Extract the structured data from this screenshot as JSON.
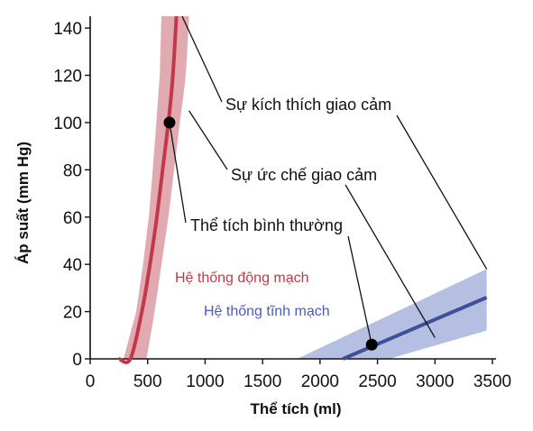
{
  "chart_data": {
    "type": "line",
    "xlabel": "Thể tích (ml)",
    "ylabel": "Áp suất (mm Hg)",
    "xlim": [
      0,
      3500
    ],
    "ylim": [
      0,
      145
    ],
    "x_ticks": [
      0,
      500,
      1000,
      1500,
      2000,
      2500,
      3000,
      3500
    ],
    "y_ticks": [
      0,
      20,
      40,
      60,
      80,
      100,
      120,
      140
    ],
    "grid": false,
    "series": [
      {
        "name": "Hệ thống động mạch",
        "color": "#c0394b",
        "band_color": "#dc9aa2",
        "x": [
          250,
          350,
          450,
          520,
          580,
          630,
          680,
          720,
          750
        ],
        "y": [
          0,
          0,
          20,
          40,
          60,
          80,
          100,
          120,
          145
        ],
        "band_upper_x": [
          490,
          560,
          620,
          680,
          730,
          780,
          830,
          860
        ],
        "band_upper_y": [
          0,
          20,
          40,
          60,
          80,
          100,
          120,
          145
        ],
        "band_lower_x": [
          290,
          400,
          460,
          510,
          545,
          575,
          605,
          620
        ],
        "band_lower_y": [
          0,
          20,
          40,
          60,
          80,
          100,
          120,
          145
        ]
      },
      {
        "name": "Hệ thống tĩnh mạch",
        "color": "#3f4f9a",
        "band_color": "#a7b4dc",
        "x": [
          2200,
          3450
        ],
        "y": [
          0,
          26
        ],
        "band_upper_x": [
          1800,
          3450
        ],
        "band_upper_y": [
          0,
          38
        ],
        "band_lower_x": [
          2600,
          3450
        ],
        "band_lower_y": [
          0,
          12
        ]
      }
    ],
    "points": [
      {
        "x": 690,
        "y": 100
      },
      {
        "x": 2450,
        "y": 6
      }
    ],
    "annotations": [
      {
        "text": "Sự kích thích giao cảm",
        "targets": [
          [
            800,
            145
          ],
          [
            3450,
            38
          ]
        ]
      },
      {
        "text": "Sự ức chế giao cảm",
        "targets": [
          [
            860,
            105
          ],
          [
            3000,
            9
          ]
        ]
      },
      {
        "text": "Thể tích bình thường",
        "targets": [
          [
            690,
            100
          ],
          [
            2450,
            6
          ]
        ]
      }
    ]
  }
}
